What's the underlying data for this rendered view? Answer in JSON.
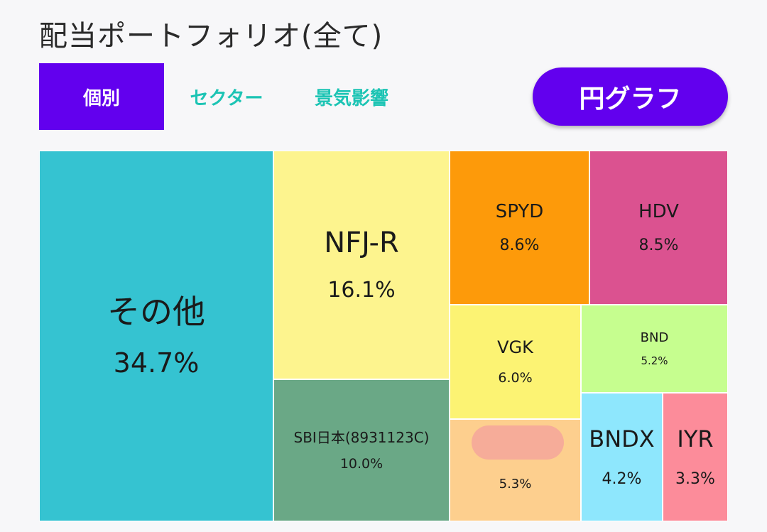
{
  "header": {
    "title": "配当ポートフォリオ(全て)"
  },
  "tabs": [
    {
      "label": "個別",
      "active": true
    },
    {
      "label": "セクター",
      "active": false
    },
    {
      "label": "景気影響",
      "active": false
    }
  ],
  "pie_button": {
    "label": "円グラフ"
  },
  "colors": {
    "accent": "#6200ee",
    "tab_inactive": "#1cc4b4"
  },
  "chart_data": {
    "type": "treemap",
    "items": [
      {
        "name": "その他",
        "value": 34.7,
        "value_label": "34.7%",
        "color": "#35c3d1"
      },
      {
        "name": "NFJ-R",
        "value": 16.1,
        "value_label": "16.1%",
        "color": "#fdf48e"
      },
      {
        "name": "SBI日本(8931123C)",
        "value": 10.0,
        "value_label": "10.0%",
        "color": "#6aa886"
      },
      {
        "name": "SPYD",
        "value": 8.6,
        "value_label": "8.6%",
        "color": "#fd9a0a"
      },
      {
        "name": "HDV",
        "value": 8.5,
        "value_label": "8.5%",
        "color": "#db5290"
      },
      {
        "name": "VGK",
        "value": 6.0,
        "value_label": "6.0%",
        "color": "#fcf373"
      },
      {
        "name": "",
        "value": 5.3,
        "value_label": "5.3%",
        "color": "#fdcf8e",
        "redacted": true
      },
      {
        "name": "BND",
        "value": 5.2,
        "value_label": "5.2%",
        "color": "#c6fe8f"
      },
      {
        "name": "BNDX",
        "value": 4.2,
        "value_label": "4.2%",
        "color": "#8ee7fd"
      },
      {
        "name": "IYR",
        "value": 3.3,
        "value_label": "3.3%",
        "color": "#fc8c9a"
      }
    ]
  }
}
